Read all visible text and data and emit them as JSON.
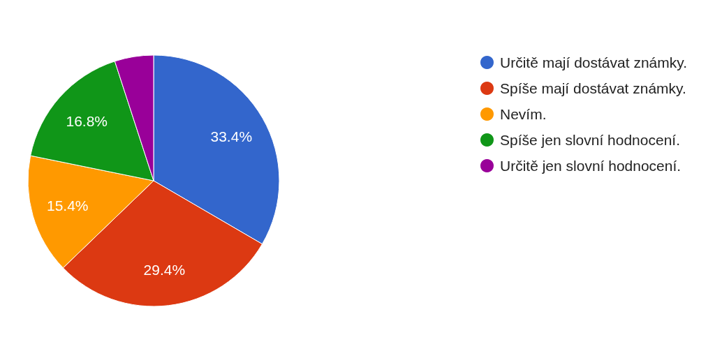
{
  "chart_data": {
    "type": "pie",
    "categories": [
      "Určitě mají dostávat známky.",
      "Spíše mají dostávat známky.",
      "Nevím.",
      "Spíše jen slovní hodnocení.",
      "Určitě jen slovní hodnocení."
    ],
    "values": [
      33.4,
      29.4,
      15.4,
      16.8,
      5.0
    ],
    "colors": [
      "#3366cc",
      "#dc3912",
      "#ff9900",
      "#109618",
      "#990099"
    ],
    "value_labels": [
      "33.4%",
      "29.4%",
      "15.4%",
      "16.8%",
      null
    ],
    "legend": "right"
  }
}
